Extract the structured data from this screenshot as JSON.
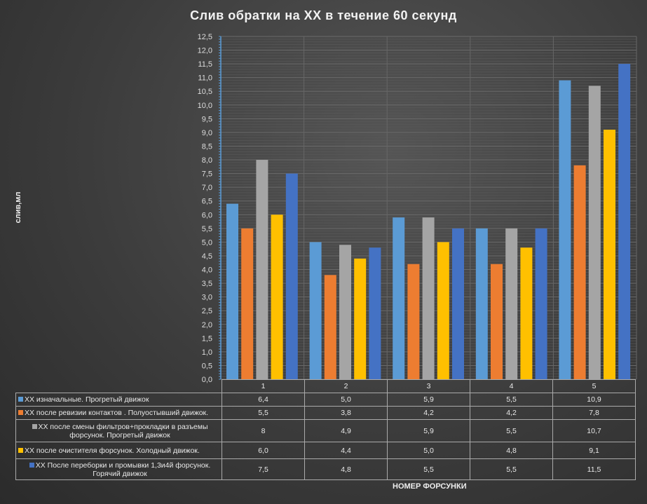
{
  "chart_data": {
    "type": "bar",
    "title": "Слив обратки  на ХХ в течение  60 секунд",
    "xlabel": "НОМЕР ФОРСУНКИ",
    "ylabel": "слив,мл",
    "ylim": [
      0,
      12.5
    ],
    "ytick_step": 0.5,
    "grid": true,
    "legend": "table-bottom",
    "categories": [
      "1",
      "2",
      "3",
      "4",
      "5"
    ],
    "series": [
      {
        "name": "ХХ изначальные. Прогретый движок",
        "color": "#5b9bd5",
        "values": [
          6.4,
          5.0,
          5.9,
          5.5,
          10.9
        ],
        "labels": [
          "6,4",
          "5,0",
          "5,9",
          "5,5",
          "10,9"
        ]
      },
      {
        "name": "ХХ после ревизии контактов . Полуостывший движок.",
        "color": "#ed7d31",
        "values": [
          5.5,
          3.8,
          4.2,
          4.2,
          7.8
        ],
        "labels": [
          "5,5",
          "3,8",
          "4,2",
          "4,2",
          "7,8"
        ]
      },
      {
        "name": "ХХ после смены фильтров+прокладки в разъемы форсунок. Прогретый движок",
        "color": "#a5a5a5",
        "values": [
          8,
          4.9,
          5.9,
          5.5,
          10.7
        ],
        "labels": [
          "8",
          "4,9",
          "5,9",
          "5,5",
          "10,7"
        ]
      },
      {
        "name": "ХХ после очистителя форсунок. Холодный движок.",
        "color": "#ffc000",
        "values": [
          6.0,
          4.4,
          5.0,
          4.8,
          9.1
        ],
        "labels": [
          "6,0",
          "4,4",
          "5,0",
          "4,8",
          "9,1"
        ]
      },
      {
        "name": "ХХ После переборки и промывки 1,3и4й форсунок. Горячий движок",
        "color": "#4472c4",
        "values": [
          7.5,
          4.8,
          5.5,
          5.5,
          11.5
        ],
        "labels": [
          "7,5",
          "4,8",
          "5,5",
          "5,5",
          "11,5"
        ]
      }
    ]
  }
}
